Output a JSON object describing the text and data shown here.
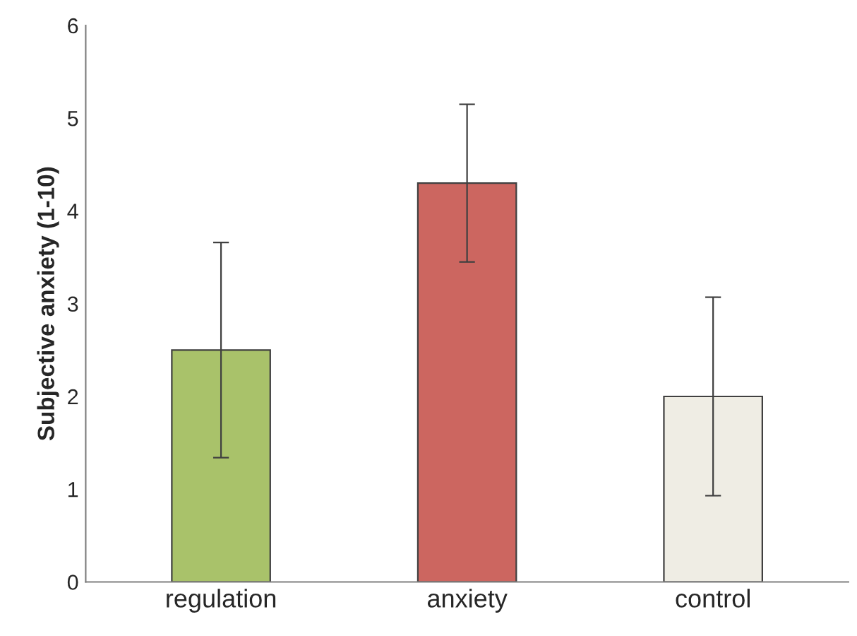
{
  "chart_data": {
    "type": "bar",
    "ylabel": "Subjective anxiety (1-10)",
    "categories": [
      "regulation",
      "anxiety",
      "control"
    ],
    "values": [
      2.5,
      4.3,
      2.0
    ],
    "colors": [
      "#a9c26a",
      "#cc6660",
      "#efede4"
    ],
    "errors": [
      1.16,
      0.85,
      1.07
    ],
    "ylim": [
      0,
      6
    ],
    "yticks": [
      0,
      1,
      2,
      3,
      4,
      5,
      6
    ],
    "grid": false,
    "legend": false
  }
}
